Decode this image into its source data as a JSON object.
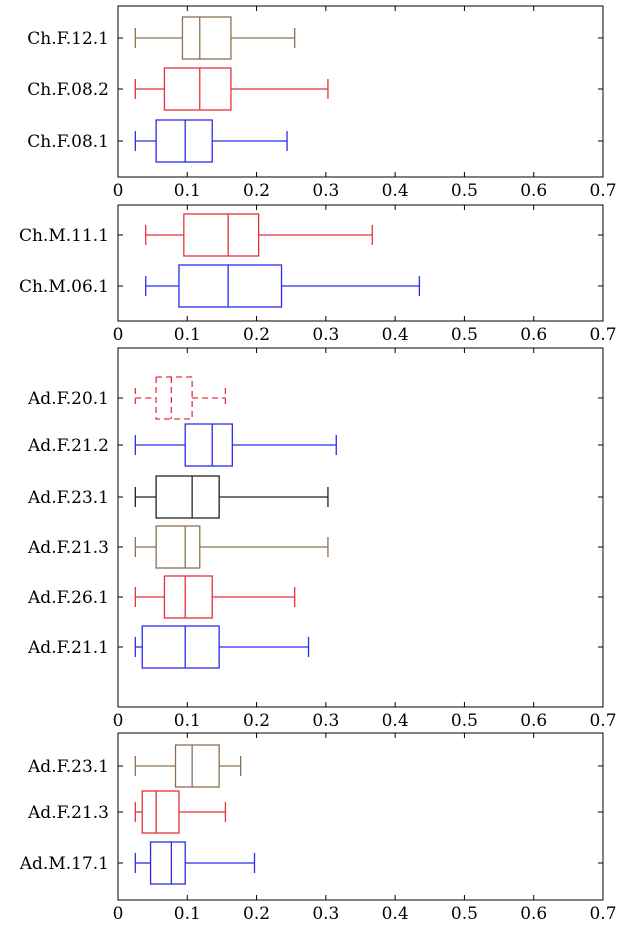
{
  "chart_data": [
    {
      "type": "boxplot",
      "xlim": [
        0,
        0.7
      ],
      "xticks": [
        "0",
        "0.1",
        "0.2",
        "0.3",
        "0.4",
        "0.5",
        "0.6",
        "0.7"
      ],
      "series": [
        {
          "label": "Ch.F.12.1",
          "color": "#8a7153",
          "style": "solid",
          "min": 0.025,
          "q1": 0.093,
          "median": 0.118,
          "q3": 0.163,
          "max": 0.255
        },
        {
          "label": "Ch.F.08.2",
          "color": "#e8313b",
          "style": "solid",
          "min": 0.025,
          "q1": 0.067,
          "median": 0.118,
          "q3": 0.163,
          "max": 0.303
        },
        {
          "label": "Ch.F.08.1",
          "color": "#2b2bf0",
          "style": "solid",
          "min": 0.025,
          "q1": 0.055,
          "median": 0.097,
          "q3": 0.136,
          "max": 0.244
        }
      ]
    },
    {
      "type": "boxplot",
      "xlim": [
        0,
        0.7
      ],
      "xticks": [
        "0",
        "0.1",
        "0.2",
        "0.3",
        "0.4",
        "0.5",
        "0.6",
        "0.7"
      ],
      "series": [
        {
          "label": "Ch.M.11.1",
          "color": "#e8313b",
          "style": "solid",
          "min": 0.04,
          "q1": 0.095,
          "median": 0.159,
          "q3": 0.203,
          "max": 0.367
        },
        {
          "label": "Ch.M.06.1",
          "color": "#2b2bf0",
          "style": "solid",
          "min": 0.04,
          "q1": 0.088,
          "median": 0.159,
          "q3": 0.236,
          "max": 0.435
        }
      ]
    },
    {
      "type": "boxplot",
      "xlim": [
        0,
        0.7
      ],
      "xticks": [
        "0",
        "0.1",
        "0.2",
        "0.3",
        "0.4",
        "0.5",
        "0.6",
        "0.7"
      ],
      "series": [
        {
          "label": "Ad.F.20.1",
          "color": "#e8313b",
          "style": "dashed",
          "min": 0.025,
          "q1": 0.055,
          "median": 0.077,
          "q3": 0.107,
          "max": 0.155
        },
        {
          "label": "Ad.F.21.2",
          "color": "#2b2bf0",
          "style": "solid",
          "min": 0.025,
          "q1": 0.097,
          "median": 0.136,
          "q3": 0.165,
          "max": 0.315
        },
        {
          "label": "Ad.F.23.1",
          "color": "#222222",
          "style": "solid",
          "min": 0.025,
          "q1": 0.055,
          "median": 0.107,
          "q3": 0.146,
          "max": 0.303
        },
        {
          "label": "Ad.F.21.3",
          "color": "#8a7153",
          "style": "solid",
          "min": 0.025,
          "q1": 0.055,
          "median": 0.097,
          "q3": 0.118,
          "max": 0.303
        },
        {
          "label": "Ad.F.26.1",
          "color": "#e8313b",
          "style": "solid",
          "min": 0.025,
          "q1": 0.067,
          "median": 0.097,
          "q3": 0.136,
          "max": 0.255
        },
        {
          "label": "Ad.F.21.1",
          "color": "#2b2bf0",
          "style": "solid",
          "min": 0.025,
          "q1": 0.035,
          "median": 0.097,
          "q3": 0.146,
          "max": 0.275
        }
      ]
    },
    {
      "type": "boxplot",
      "xlim": [
        0,
        0.7
      ],
      "xticks": [
        "0",
        "0.1",
        "0.2",
        "0.3",
        "0.4",
        "0.5",
        "0.6",
        "0.7"
      ],
      "series": [
        {
          "label": "Ad.F.23.1",
          "color": "#8a7153",
          "style": "solid",
          "min": 0.025,
          "q1": 0.083,
          "median": 0.107,
          "q3": 0.146,
          "max": 0.177
        },
        {
          "label": "Ad.F.21.3",
          "color": "#e8313b",
          "style": "solid",
          "min": 0.025,
          "q1": 0.035,
          "median": 0.055,
          "q3": 0.088,
          "max": 0.155
        },
        {
          "label": "Ad.M.17.1",
          "color": "#2b2bf0",
          "style": "solid",
          "min": 0.025,
          "q1": 0.047,
          "median": 0.077,
          "q3": 0.097,
          "max": 0.197
        }
      ]
    }
  ]
}
